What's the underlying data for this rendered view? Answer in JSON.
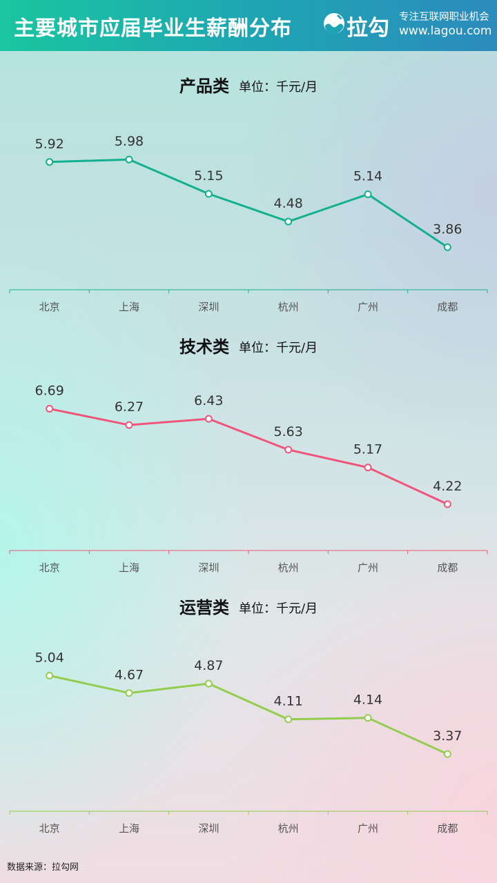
{
  "header": {
    "title": "主要城市应届毕业生薪酬分布",
    "logo_text": "拉勾",
    "slogan": "专注互联网职业机会",
    "url": "www.lagou.com"
  },
  "source": "数据来源：拉勾网",
  "chart_data": [
    {
      "type": "line",
      "title": "产品类",
      "unit": "单位：千元/月",
      "categories": [
        "北京",
        "上海",
        "深圳",
        "杭州",
        "广州",
        "成都"
      ],
      "values": [
        5.92,
        5.98,
        5.15,
        4.48,
        5.14,
        3.86
      ],
      "color": "#12b08e",
      "ylim": [
        3.0,
        7.2
      ]
    },
    {
      "type": "line",
      "title": "技术类",
      "unit": "单位：千元/月",
      "categories": [
        "北京",
        "上海",
        "深圳",
        "杭州",
        "广州",
        "成都"
      ],
      "values": [
        6.69,
        6.27,
        6.43,
        5.63,
        5.17,
        4.22
      ],
      "color": "#f05478",
      "ylim": [
        3.2,
        7.7
      ]
    },
    {
      "type": "line",
      "title": "运营类",
      "unit": "单位：千元/月",
      "categories": [
        "北京",
        "上海",
        "深圳",
        "杭州",
        "广州",
        "成都"
      ],
      "values": [
        5.04,
        4.67,
        4.87,
        4.11,
        4.14,
        3.37
      ],
      "color": "#92cd4e",
      "ylim": [
        2.3,
        6.0
      ]
    }
  ]
}
